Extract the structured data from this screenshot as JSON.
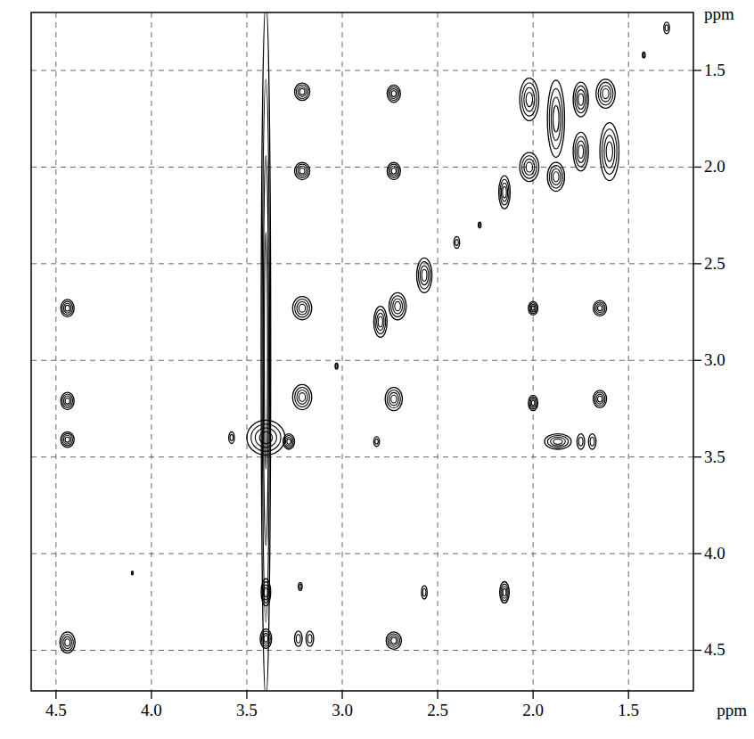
{
  "chart_data": {
    "type": "contour",
    "x_label": "ppm",
    "y_label": "ppm",
    "xlim": [
      4.63,
      1.16
    ],
    "ylim": [
      1.2,
      4.71
    ],
    "xticks": [
      4.5,
      {
        "value": 4,
        "label": "4.0"
      },
      3.5,
      {
        "value": 3,
        "label": "3.0"
      },
      2.5,
      {
        "value": 2,
        "label": "2.0"
      },
      1.5
    ],
    "yticks": [
      1.5,
      {
        "value": 2,
        "label": "2.0"
      },
      2.5,
      {
        "value": 3,
        "label": "3.0"
      },
      3.5,
      {
        "value": 4,
        "label": "4.0"
      },
      4.5
    ],
    "grid": true,
    "color": "#000000",
    "x": [
      4.44,
      4.44,
      4.44,
      4.44,
      3.4,
      3.4,
      3.4,
      3.4,
      3.21,
      3.21,
      3.21,
      3.21,
      3.23,
      3.17,
      2.73,
      2.73,
      2.71,
      2.73,
      2.73,
      2.8,
      2.82,
      2.57,
      2.57,
      2.15,
      2.15,
      2.02,
      2.02,
      1.88,
      1.88,
      1.75,
      1.75,
      1.62,
      1.6,
      2.0,
      2.0,
      1.65,
      1.65,
      1.87,
      1.75,
      1.69,
      1.3,
      1.42,
      2.4,
      2.28,
      3.03,
      3.58,
      3.28,
      4.1,
      3.22
    ],
    "y": [
      2.73,
      3.21,
      3.41,
      4.46,
      3.4,
      2.95,
      4.2,
      4.44,
      1.61,
      2.02,
      2.73,
      3.19,
      4.44,
      4.44,
      1.62,
      2.02,
      2.72,
      3.2,
      4.45,
      2.8,
      3.42,
      2.56,
      4.2,
      2.13,
      4.2,
      1.65,
      2.0,
      1.75,
      2.05,
      1.65,
      1.92,
      1.62,
      1.92,
      2.73,
      3.22,
      2.73,
      3.2,
      3.42,
      3.42,
      3.42,
      1.28,
      1.42,
      2.39,
      2.3,
      3.03,
      3.4,
      3.42,
      4.1,
      4.17
    ],
    "width": [
      0.07,
      0.07,
      0.07,
      0.08,
      0.2,
      0.05,
      0.05,
      0.06,
      0.08,
      0.08,
      0.1,
      0.1,
      0.04,
      0.04,
      0.07,
      0.07,
      0.09,
      0.09,
      0.08,
      0.07,
      0.03,
      0.08,
      0.03,
      0.06,
      0.05,
      0.1,
      0.1,
      0.09,
      0.09,
      0.08,
      0.08,
      0.1,
      0.1,
      0.05,
      0.05,
      0.07,
      0.07,
      0.14,
      0.04,
      0.04,
      0.03,
      0.015,
      0.03,
      0.015,
      0.015,
      0.03,
      0.06,
      0.01,
      0.02
    ],
    "height": [
      0.09,
      0.09,
      0.08,
      0.11,
      0.18,
      3.6,
      0.14,
      0.1,
      0.09,
      0.09,
      0.12,
      0.13,
      0.08,
      0.08,
      0.09,
      0.09,
      0.14,
      0.12,
      0.09,
      0.16,
      0.05,
      0.18,
      0.07,
      0.17,
      0.11,
      0.22,
      0.15,
      0.4,
      0.15,
      0.18,
      0.2,
      0.15,
      0.3,
      0.07,
      0.08,
      0.08,
      0.09,
      0.08,
      0.08,
      0.08,
      0.06,
      0.03,
      0.06,
      0.03,
      0.03,
      0.06,
      0.08,
      0.02,
      0.04
    ]
  }
}
